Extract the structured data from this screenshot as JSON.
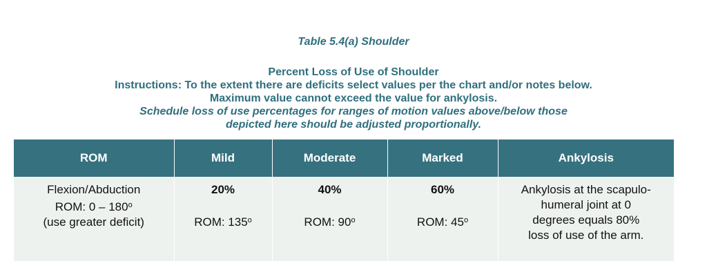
{
  "caption": "Table 5.4(a) Shoulder",
  "heading": {
    "title": "Percent Loss of Use of Shoulder",
    "instructions": "Instructions: To the extent there are deficits select values per the chart and/or notes below.",
    "maximum": "Maximum value cannot exceed the value for ankylosis.",
    "schedule_line1": "Schedule loss of use percentages for ranges of motion values above/below those",
    "schedule_line2": "depicted here should be adjusted proportionally."
  },
  "table": {
    "headers": [
      "ROM",
      "Mild",
      "Moderate",
      "Marked",
      "Ankylosis"
    ],
    "row": {
      "rom_line1": "Flexion/Abduction",
      "rom_line2": "ROM: 0 – 180",
      "rom_line3": "(use greater deficit)",
      "mild_pct": "20%",
      "mild_rom": "ROM: 135",
      "moderate_pct": "40%",
      "moderate_rom": "ROM: 90",
      "marked_pct": "60%",
      "marked_rom": "ROM: 45",
      "degree_mark": "o",
      "ankylosis_line1": "Ankylosis at the scapulo-",
      "ankylosis_line2": "humeral joint at 0",
      "ankylosis_line3": "degrees equals 80%",
      "ankylosis_line4": "loss of use of the arm."
    }
  },
  "colors": {
    "heading_text": "#2f6f7e",
    "header_bg": "#36717f",
    "cell_bg": "#eef2ef"
  }
}
